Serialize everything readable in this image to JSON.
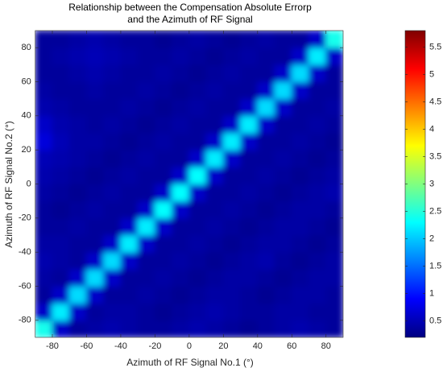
{
  "chart_data": {
    "type": "heatmap",
    "title": [
      "Relationship between the Compensation Absolute Errorp",
      "and the Azimuth of RF Signal"
    ],
    "x_label": "Azimuth  of RF Signal No.1 (°)",
    "y_label": "Azimuth  of RF Signal No.2 (°)",
    "x": [
      -85,
      -75,
      -65,
      -55,
      -45,
      -35,
      -25,
      -15,
      -5,
      5,
      15,
      25,
      35,
      45,
      55,
      65,
      75,
      85
    ],
    "y": [
      -85,
      -75,
      -65,
      -55,
      -45,
      -35,
      -25,
      -15,
      -5,
      5,
      15,
      25,
      35,
      45,
      55,
      65,
      75,
      85
    ],
    "z": [
      [
        2.4,
        0.6,
        0.35,
        0.4,
        0.45,
        0.4,
        0.35,
        0.35,
        0.4,
        0.45,
        0.4,
        0.35,
        0.3,
        0.35,
        0.4,
        0.45,
        0.4,
        0.35
      ],
      [
        0.6,
        2.2,
        0.6,
        0.35,
        0.4,
        0.4,
        0.35,
        0.3,
        0.35,
        0.4,
        0.45,
        0.4,
        0.35,
        0.35,
        0.4,
        0.4,
        0.35,
        0.35
      ],
      [
        0.35,
        0.6,
        2.1,
        0.6,
        0.35,
        0.35,
        0.4,
        0.35,
        0.3,
        0.35,
        0.4,
        0.4,
        0.35,
        0.3,
        0.35,
        0.4,
        0.4,
        0.35
      ],
      [
        0.4,
        0.35,
        0.6,
        2.1,
        0.6,
        0.35,
        0.35,
        0.4,
        0.35,
        0.3,
        0.35,
        0.4,
        0.4,
        0.35,
        0.3,
        0.35,
        0.4,
        0.4
      ],
      [
        0.45,
        0.4,
        0.35,
        0.6,
        2.1,
        0.6,
        0.35,
        0.35,
        0.4,
        0.35,
        0.3,
        0.35,
        0.4,
        0.45,
        0.35,
        0.3,
        0.35,
        0.4
      ],
      [
        0.4,
        0.4,
        0.35,
        0.35,
        0.6,
        2.2,
        0.6,
        0.35,
        0.35,
        0.4,
        0.35,
        0.3,
        0.35,
        0.4,
        0.4,
        0.35,
        0.3,
        0.35
      ],
      [
        0.35,
        0.35,
        0.4,
        0.35,
        0.35,
        0.6,
        2.2,
        0.6,
        0.35,
        0.35,
        0.4,
        0.35,
        0.3,
        0.35,
        0.4,
        0.4,
        0.35,
        0.3
      ],
      [
        0.35,
        0.3,
        0.35,
        0.4,
        0.35,
        0.35,
        0.6,
        2.3,
        0.6,
        0.35,
        0.35,
        0.4,
        0.35,
        0.3,
        0.35,
        0.4,
        0.4,
        0.35
      ],
      [
        0.4,
        0.35,
        0.3,
        0.35,
        0.4,
        0.35,
        0.35,
        0.6,
        2.3,
        0.6,
        0.35,
        0.35,
        0.4,
        0.35,
        0.3,
        0.35,
        0.4,
        0.45
      ],
      [
        0.45,
        0.4,
        0.35,
        0.3,
        0.35,
        0.4,
        0.35,
        0.35,
        0.6,
        2.3,
        0.6,
        0.35,
        0.35,
        0.4,
        0.35,
        0.3,
        0.35,
        0.4
      ],
      [
        0.5,
        0.45,
        0.4,
        0.35,
        0.3,
        0.35,
        0.4,
        0.35,
        0.35,
        0.6,
        2.2,
        0.6,
        0.35,
        0.35,
        0.4,
        0.35,
        0.3,
        0.35
      ],
      [
        0.7,
        0.5,
        0.4,
        0.4,
        0.35,
        0.3,
        0.35,
        0.4,
        0.35,
        0.35,
        0.6,
        2.2,
        0.6,
        0.35,
        0.35,
        0.4,
        0.35,
        0.3
      ],
      [
        0.6,
        0.45,
        0.4,
        0.35,
        0.4,
        0.35,
        0.3,
        0.35,
        0.4,
        0.35,
        0.35,
        0.6,
        2.2,
        0.6,
        0.35,
        0.35,
        0.4,
        0.35
      ],
      [
        0.45,
        0.4,
        0.35,
        0.35,
        0.35,
        0.4,
        0.35,
        0.3,
        0.35,
        0.4,
        0.35,
        0.35,
        0.6,
        2.1,
        0.6,
        0.35,
        0.35,
        0.4
      ],
      [
        0.4,
        0.35,
        0.35,
        0.4,
        0.35,
        0.35,
        0.4,
        0.35,
        0.3,
        0.35,
        0.4,
        0.35,
        0.35,
        0.6,
        2.1,
        0.6,
        0.35,
        0.35
      ],
      [
        0.35,
        0.35,
        0.4,
        0.45,
        0.4,
        0.35,
        0.35,
        0.4,
        0.35,
        0.3,
        0.35,
        0.4,
        0.35,
        0.35,
        0.6,
        2.1,
        0.6,
        0.35
      ],
      [
        0.35,
        0.4,
        0.45,
        0.5,
        0.45,
        0.4,
        0.35,
        0.35,
        0.4,
        0.35,
        0.3,
        0.35,
        0.4,
        0.35,
        0.35,
        0.6,
        2.2,
        0.6
      ],
      [
        0.35,
        0.35,
        0.4,
        0.45,
        0.4,
        0.35,
        0.35,
        0.3,
        0.35,
        0.4,
        0.35,
        0.3,
        0.35,
        0.4,
        0.35,
        0.35,
        0.6,
        2.4
      ]
    ],
    "xlim": [
      -90,
      90
    ],
    "ylim": [
      -90,
      90
    ],
    "xticks": [
      -80,
      -60,
      -40,
      -20,
      0,
      20,
      40,
      60,
      80
    ],
    "yticks": [
      -80,
      -60,
      -40,
      -20,
      0,
      20,
      40,
      60,
      80
    ],
    "colormap": "jet",
    "clim": [
      0.2,
      5.8
    ],
    "colorbar_ticks": [
      0.5,
      1,
      1.5,
      2,
      2.5,
      3,
      3.5,
      4,
      4.5,
      5,
      5.5
    ]
  }
}
